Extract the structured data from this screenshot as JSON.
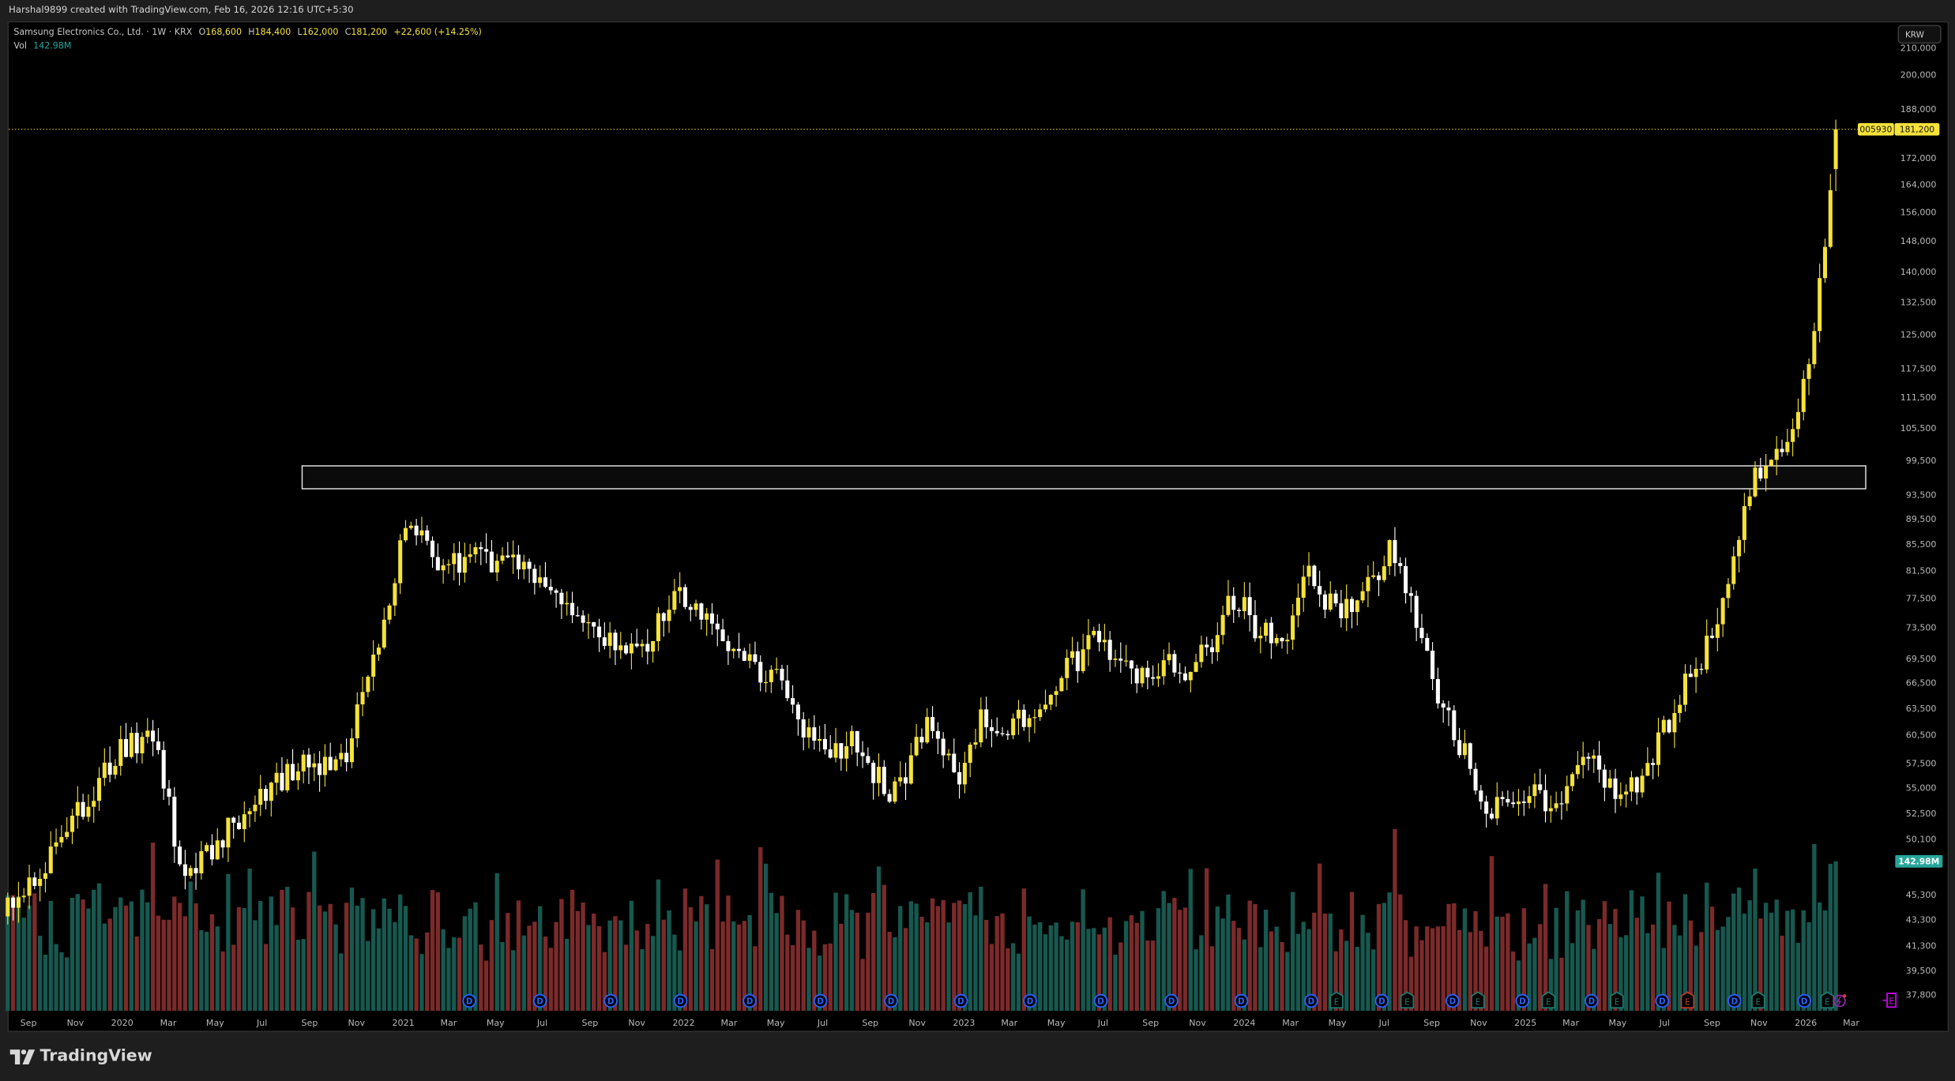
{
  "header": {
    "credit": "Harshal9899 created with TradingView.com, Feb 16, 2026 12:16 UTC+5:30"
  },
  "legend": {
    "symbol": "Samsung Electronics Co., Ltd. · 1W · KRX",
    "open_label": "O",
    "open": "168,600",
    "high_label": "H",
    "high": "184,400",
    "low_label": "L",
    "low": "162,000",
    "close_label": "C",
    "close": "181,200",
    "change": "+22,600 (+14.25%)",
    "vol_label": "Vol",
    "vol": "142.98M"
  },
  "currency_button": "KRW",
  "price_labels": {
    "ticker": "005930",
    "last_price": "181,200",
    "last_volume": "142.98M"
  },
  "brand": "TradingView",
  "colors": {
    "up": "#f5e23a",
    "down": "#ffffff",
    "vol_up": "#17584f",
    "vol_down": "#7b2a2a",
    "price_line": "#f5e23a",
    "dividend": "#2962ff",
    "earnings": "#1f7a6e"
  },
  "chart_data": {
    "type": "candlestick",
    "title": "Samsung Electronics Co., Ltd. 1W KRX",
    "scale": "log",
    "ylim": [
      36500,
      215000
    ],
    "y_ticks": [
      210000,
      200000,
      188000,
      172000,
      164000,
      156000,
      148000,
      140000,
      132500,
      125000,
      117500,
      111500,
      105500,
      99500,
      93500,
      89500,
      85500,
      81500,
      77500,
      73500,
      69500,
      66500,
      63500,
      60500,
      57500,
      55000,
      52500,
      50100,
      45300,
      43300,
      41300,
      39500,
      37800
    ],
    "x_ticks": [
      {
        "date": "2019-09-01",
        "label": "Sep"
      },
      {
        "date": "2019-11-01",
        "label": "Nov"
      },
      {
        "date": "2020-01-01",
        "label": "2020"
      },
      {
        "date": "2020-03-01",
        "label": "Mar"
      },
      {
        "date": "2020-05-01",
        "label": "May"
      },
      {
        "date": "2020-07-01",
        "label": "Jul"
      },
      {
        "date": "2020-09-01",
        "label": "Sep"
      },
      {
        "date": "2020-11-01",
        "label": "Nov"
      },
      {
        "date": "2021-01-01",
        "label": "2021"
      },
      {
        "date": "2021-03-01",
        "label": "Mar"
      },
      {
        "date": "2021-05-01",
        "label": "May"
      },
      {
        "date": "2021-07-01",
        "label": "Jul"
      },
      {
        "date": "2021-09-01",
        "label": "Sep"
      },
      {
        "date": "2021-11-01",
        "label": "Nov"
      },
      {
        "date": "2022-01-01",
        "label": "2022"
      },
      {
        "date": "2022-03-01",
        "label": "Mar"
      },
      {
        "date": "2022-05-01",
        "label": "May"
      },
      {
        "date": "2022-07-01",
        "label": "Jul"
      },
      {
        "date": "2022-09-01",
        "label": "Sep"
      },
      {
        "date": "2022-11-01",
        "label": "Nov"
      },
      {
        "date": "2023-01-01",
        "label": "2023"
      },
      {
        "date": "2023-03-01",
        "label": "Mar"
      },
      {
        "date": "2023-05-01",
        "label": "May"
      },
      {
        "date": "2023-07-01",
        "label": "Jul"
      },
      {
        "date": "2023-09-01",
        "label": "Sep"
      },
      {
        "date": "2023-11-01",
        "label": "Nov"
      },
      {
        "date": "2024-01-01",
        "label": "2024"
      },
      {
        "date": "2024-03-01",
        "label": "Mar"
      },
      {
        "date": "2024-05-01",
        "label": "May"
      },
      {
        "date": "2024-07-01",
        "label": "Jul"
      },
      {
        "date": "2024-09-01",
        "label": "Sep"
      },
      {
        "date": "2024-11-01",
        "label": "Nov"
      },
      {
        "date": "2025-01-01",
        "label": "2025"
      },
      {
        "date": "2025-03-01",
        "label": "Mar"
      },
      {
        "date": "2025-05-01",
        "label": "May"
      },
      {
        "date": "2025-07-01",
        "label": "Jul"
      },
      {
        "date": "2025-09-01",
        "label": "Sep"
      },
      {
        "date": "2025-11-01",
        "label": "Nov"
      },
      {
        "date": "2026-01-01",
        "label": "2026"
      },
      {
        "date": "2026-03-01",
        "label": "Mar"
      }
    ],
    "first_week": "2019-08-05",
    "last_week": "2026-02-09",
    "close_keypoints": [
      [
        "2019-08-05",
        44000
      ],
      [
        "2019-11-01",
        52000
      ],
      [
        "2020-01-10",
        60000
      ],
      [
        "2020-02-15",
        60000
      ],
      [
        "2020-03-20",
        46000
      ],
      [
        "2020-04-20",
        49000
      ],
      [
        "2020-06-15",
        53000
      ],
      [
        "2020-08-15",
        57000
      ],
      [
        "2020-10-15",
        58000
      ],
      [
        "2020-11-15",
        66000
      ],
      [
        "2020-12-20",
        81000
      ],
      [
        "2021-01-10",
        89000
      ],
      [
        "2021-02-10",
        82000
      ],
      [
        "2021-04-10",
        84000
      ],
      [
        "2021-06-10",
        81000
      ],
      [
        "2021-07-15",
        79000
      ],
      [
        "2021-08-15",
        74000
      ],
      [
        "2021-10-15",
        70000
      ],
      [
        "2021-11-15",
        72000
      ],
      [
        "2021-12-20",
        79000
      ],
      [
        "2022-01-15",
        77000
      ],
      [
        "2022-03-15",
        70000
      ],
      [
        "2022-05-15",
        66000
      ],
      [
        "2022-06-15",
        60000
      ],
      [
        "2022-07-15",
        59000
      ],
      [
        "2022-08-15",
        60000
      ],
      [
        "2022-09-25",
        54000
      ],
      [
        "2022-10-20",
        57000
      ],
      [
        "2022-11-15",
        62000
      ],
      [
        "2022-12-25",
        56000
      ],
      [
        "2023-01-25",
        63000
      ],
      [
        "2023-02-20",
        60000
      ],
      [
        "2023-04-15",
        65000
      ],
      [
        "2023-06-20",
        72000
      ],
      [
        "2023-08-25",
        67000
      ],
      [
        "2023-09-20",
        70000
      ],
      [
        "2023-10-20",
        67000
      ],
      [
        "2023-11-20",
        72000
      ],
      [
        "2023-12-20",
        78000
      ],
      [
        "2024-01-20",
        73000
      ],
      [
        "2024-02-25",
        73000
      ],
      [
        "2024-03-20",
        82000
      ],
      [
        "2024-04-15",
        77000
      ],
      [
        "2024-05-20",
        76000
      ],
      [
        "2024-06-20",
        80000
      ],
      [
        "2024-07-10",
        86000
      ],
      [
        "2024-08-10",
        75000
      ],
      [
        "2024-09-10",
        64000
      ],
      [
        "2024-10-15",
        58000
      ],
      [
        "2024-11-15",
        53000
      ],
      [
        "2024-12-20",
        54000
      ],
      [
        "2025-02-20",
        54000
      ],
      [
        "2025-03-20",
        59000
      ],
      [
        "2025-04-15",
        55000
      ],
      [
        "2025-05-20",
        55000
      ],
      [
        "2025-06-20",
        59000
      ],
      [
        "2025-07-20",
        65000
      ],
      [
        "2025-08-20",
        70000
      ],
      [
        "2025-09-15",
        76000
      ],
      [
        "2025-10-15",
        93000
      ],
      [
        "2025-11-10",
        100000
      ],
      [
        "2025-12-15",
        105000
      ],
      [
        "2026-01-15",
        130000
      ],
      [
        "2026-02-02",
        158600
      ]
    ],
    "last_bar": {
      "open": 168600,
      "high": 184400,
      "low": 162000,
      "close": 181200,
      "volume_m": 142.98
    },
    "highlight_zone": {
      "from": "2020-09-01",
      "to": "2026-03-20",
      "low": 94500,
      "high": 98500
    },
    "volume_max_m": 236,
    "dividend_events": [
      "2021-03-28",
      "2021-06-28",
      "2021-09-28",
      "2021-12-28",
      "2022-03-28",
      "2022-06-28",
      "2022-09-28",
      "2022-12-28",
      "2023-03-28",
      "2023-06-28",
      "2023-09-28",
      "2023-12-28",
      "2024-03-28",
      "2024-06-28",
      "2024-09-28",
      "2024-12-28",
      "2025-03-28",
      "2025-06-28",
      "2025-09-30",
      "2025-12-30"
    ],
    "earnings_events": [
      {
        "date": "2024-04-30",
        "label": "E",
        "beat": true
      },
      {
        "date": "2024-07-31",
        "label": "E",
        "beat": true
      },
      {
        "date": "2024-10-31",
        "label": "E",
        "beat": true
      },
      {
        "date": "2025-01-31",
        "label": "E",
        "beat": true
      },
      {
        "date": "2025-04-30",
        "label": "E",
        "beat": true
      },
      {
        "date": "2025-07-31",
        "label": "E",
        "beat": false
      },
      {
        "date": "2025-10-31",
        "label": "E",
        "beat": true
      },
      {
        "date": "2026-01-29",
        "label": "E",
        "beat": true
      }
    ],
    "dividend_label": "D",
    "upcoming_earnings": {
      "date": "2026-04-07",
      "label": "E"
    }
  }
}
